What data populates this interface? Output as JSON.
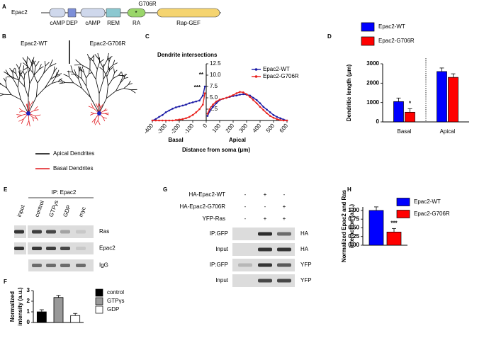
{
  "panel_labels": [
    "A",
    "B",
    "C",
    "D",
    "E",
    "F",
    "G",
    "H"
  ],
  "domain_diagram": {
    "protein": "Epac2",
    "mutation": "G706R",
    "mutation_mark": "*",
    "domains": [
      "cAMP",
      "DEP",
      "cAMP",
      "REM",
      "RA",
      "Rap-GEF"
    ]
  },
  "neurons": {
    "titles": [
      "Epac2-WT",
      "Epac2-G706R"
    ],
    "legend": [
      "Apical Dendrites",
      "Basal Dendrites"
    ]
  },
  "blot_e": {
    "title": "IP: Epac2",
    "lanes": [
      "input",
      "control",
      "GTPγs",
      "GDP",
      "myc"
    ],
    "rows": [
      "Ras",
      "Epac2",
      "IgG"
    ]
  },
  "blot_g": {
    "conditions": [
      {
        "name": "HA-Epac2-WT",
        "signs": [
          "-",
          "+",
          "-"
        ]
      },
      {
        "name": "HA-Epac2-G706R",
        "signs": [
          "-",
          "-",
          "+"
        ]
      },
      {
        "name": "YFP-Ras",
        "signs": [
          "-",
          "+",
          "+"
        ]
      }
    ],
    "left_labels": [
      "IP:GFP",
      "Input",
      "IP:GFP",
      "Input"
    ],
    "right_labels": [
      "HA",
      "HA",
      "YFP",
      "YFP"
    ]
  },
  "chart_data": [
    {
      "type": "line",
      "title": "Dendrite intersections",
      "xlabel": "Distance from soma (μm)",
      "region_labels": [
        "Basal",
        "Apical"
      ],
      "significance": [
        "**",
        "***"
      ],
      "x": [
        -400,
        -375,
        -350,
        -325,
        -300,
        -275,
        -250,
        -225,
        -200,
        -175,
        -150,
        -125,
        -100,
        -75,
        -50,
        -25,
        -10,
        0,
        10,
        25,
        50,
        75,
        100,
        125,
        150,
        175,
        200,
        225,
        250,
        275,
        300,
        325,
        350,
        375,
        400,
        425,
        450,
        475,
        500,
        525,
        550,
        575,
        600
      ],
      "series": [
        {
          "name": "Epac2-WT",
          "color": "#1a1aa6",
          "values": [
            0,
            0.3,
            0.8,
            1.2,
            1.8,
            2.2,
            2.6,
            2.9,
            3.1,
            3.3,
            3.5,
            3.8,
            4.0,
            4.2,
            4.4,
            5.5,
            7.5,
            null,
            1.0,
            2.0,
            3.0,
            3.8,
            4.5,
            4.8,
            5.0,
            5.2,
            5.4,
            5.5,
            5.7,
            5.8,
            5.7,
            5.5,
            5.0,
            4.5,
            3.8,
            3.0,
            2.4,
            1.8,
            1.2,
            0.8,
            0.5,
            0.2,
            0
          ]
        },
        {
          "name": "Epac2-G706R",
          "color": "#e8201c",
          "values": [
            0,
            0,
            0,
            0,
            0,
            0,
            0,
            0.1,
            0.2,
            0.3,
            0.5,
            0.8,
            1.2,
            1.8,
            2.5,
            3.5,
            6.0,
            null,
            1.5,
            2.5,
            3.5,
            4.2,
            4.6,
            4.8,
            5.0,
            5.3,
            5.6,
            6.0,
            6.3,
            6.2,
            5.8,
            5.2,
            4.5,
            3.8,
            3.0,
            2.3,
            1.6,
            1.0,
            0.6,
            0.3,
            0.1,
            0,
            0
          ]
        }
      ],
      "xlim": [
        -400,
        600
      ],
      "xticks": [
        -400,
        -300,
        -200,
        -100,
        0,
        100,
        200,
        300,
        400,
        500,
        600
      ],
      "ylim": [
        0,
        12.5
      ],
      "yticks": [
        2.5,
        {
          "value": 5,
          "label": "5.0"
        },
        7.5,
        {
          "value": 10,
          "label": "10.0"
        },
        12.5
      ]
    },
    {
      "type": "bar",
      "ylabel": [
        "Dendritic length (μm)"
      ],
      "categories": [
        "Basal",
        "Apical"
      ],
      "significance": "*",
      "series": [
        {
          "name": "Epac2-WT",
          "color": "#0000ff",
          "values": [
            1050,
            2600
          ]
        },
        {
          "name": "Epac2-G706R",
          "color": "#ff0000",
          "values": [
            500,
            2300
          ]
        }
      ],
      "ylim": [
        0,
        3000
      ],
      "yticks": [
        0,
        1000,
        2000,
        3000
      ]
    },
    {
      "type": "bar",
      "ylabel": [
        "Normalized",
        "intensity (a.u.)"
      ],
      "categories": [
        "control",
        "GTPγs",
        "GDP"
      ],
      "values": [
        1.0,
        2.35,
        0.65
      ],
      "colors": [
        "#000000",
        "#999999",
        "#ffffff"
      ],
      "ylim": [
        0,
        3
      ],
      "yticks": [
        0,
        1,
        2,
        3
      ]
    },
    {
      "type": "bar",
      "ylabel": [
        "Normalized Epac2 and Ras",
        "interaction (a.u.)"
      ],
      "significance": "***",
      "series": [
        {
          "name": "Epac2-WT",
          "color": "#0000ff",
          "values": [
            1.0
          ]
        },
        {
          "name": "Epac2-G706R",
          "color": "#ff0000",
          "values": [
            0.38
          ]
        }
      ],
      "ylim": [
        0,
        1.1
      ],
      "yticks": [
        {
          "value": 0,
          "label": "0.00"
        },
        0.25,
        {
          "value": 0.5,
          "label": "0.50"
        },
        0.75,
        {
          "value": 1,
          "label": "1.00"
        }
      ]
    }
  ]
}
